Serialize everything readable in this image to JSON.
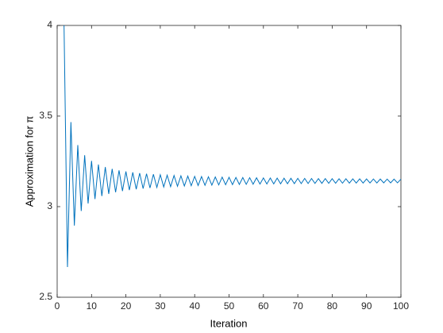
{
  "chart_data": {
    "type": "line",
    "xlabel": "Iteration",
    "ylabel": "Approximation for π",
    "color": "#0072bd",
    "xlim": [
      0,
      100
    ],
    "xticks": [
      0,
      10,
      20,
      30,
      40,
      50,
      60,
      70,
      80,
      90,
      100
    ],
    "ylim": [
      2.5,
      4
    ],
    "yticks": [
      2.5,
      3,
      3.5,
      4
    ],
    "x": [
      2,
      3,
      4,
      5,
      6,
      7,
      8,
      9,
      10,
      11,
      12,
      13,
      14,
      15,
      16,
      17,
      18,
      19,
      20,
      21,
      22,
      23,
      24,
      25,
      26,
      27,
      28,
      29,
      30,
      31,
      32,
      33,
      34,
      35,
      36,
      37,
      38,
      39,
      40,
      41,
      42,
      43,
      44,
      45,
      46,
      47,
      48,
      49,
      50,
      51,
      52,
      53,
      54,
      55,
      56,
      57,
      58,
      59,
      60,
      61,
      62,
      63,
      64,
      65,
      66,
      67,
      68,
      69,
      70,
      71,
      72,
      73,
      74,
      75,
      76,
      77,
      78,
      79,
      80,
      81,
      82,
      83,
      84,
      85,
      86,
      87,
      88,
      89,
      90,
      91,
      92,
      93,
      94,
      95,
      96,
      97,
      98,
      99,
      100
    ],
    "values": [
      4,
      2.6667,
      3.4667,
      2.8952,
      3.3397,
      2.976,
      3.2837,
      3.0171,
      3.2524,
      3.0418,
      3.2323,
      3.0584,
      3.2185,
      3.0702,
      3.2083,
      3.0791,
      3.2004,
      3.086,
      3.1942,
      3.0916,
      3.1892,
      3.0961,
      3.1851,
      3.0999,
      3.1816,
      3.1031,
      3.1786,
      3.1059,
      3.1761,
      3.1083,
      3.1739,
      3.1103,
      3.1719,
      3.1122,
      3.1702,
      3.1138,
      3.1686,
      3.1153,
      3.1672,
      3.1166,
      3.166,
      3.1178,
      3.1649,
      3.1189,
      3.1638,
      3.1199,
      3.1629,
      3.1208,
      3.162,
      3.1216,
      3.1612,
      3.1224,
      3.1605,
      3.1231,
      3.1598,
      3.1237,
      3.1591,
      3.1244,
      3.1585,
      3.1249,
      3.158,
      3.1255,
      3.1575,
      3.126,
      3.157,
      3.1264,
      3.1565,
      3.1269,
      3.1561,
      3.1273,
      3.1557,
      3.1277,
      3.1553,
      3.1281,
      3.1549,
      3.1284,
      3.1546,
      3.1288,
      3.1543,
      3.1291,
      3.1539,
      3.1294,
      3.1536,
      3.1297,
      3.1534,
      3.13,
      3.1531,
      3.1302,
      3.1528,
      3.1305,
      3.1526,
      3.1307,
      3.1524,
      3.131,
      3.1521,
      3.1312,
      3.1519,
      3.1314,
      3.1517
    ]
  }
}
